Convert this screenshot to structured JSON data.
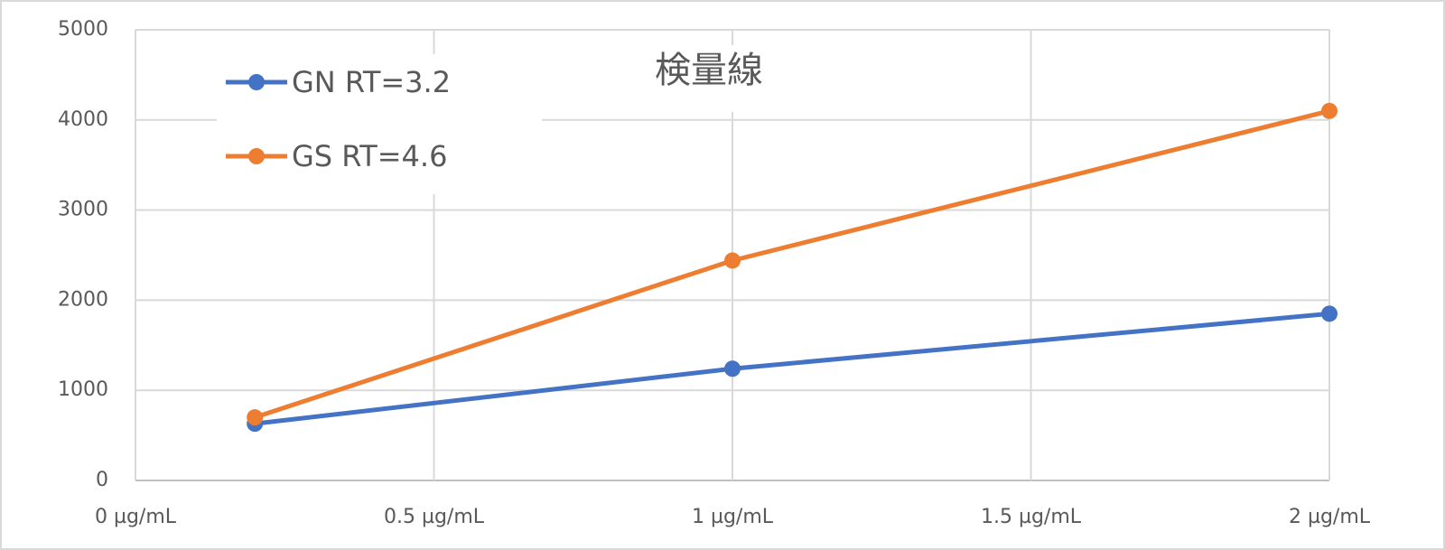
{
  "chart_data": {
    "type": "line",
    "title": "検量線",
    "x": [
      0.2,
      1,
      2
    ],
    "series": [
      {
        "name": "GN RT=3.2",
        "color": "#4472c4",
        "values": [
          630,
          1240,
          1850
        ]
      },
      {
        "name": "GS RT=4.6",
        "color": "#ed7d31",
        "values": [
          700,
          2440,
          4100
        ]
      }
    ],
    "xlim": [
      0,
      2
    ],
    "xticks": [
      {
        "value": 0,
        "label": "0 µg/mL"
      },
      {
        "value": 0.5,
        "label": "0.5 µg/mL"
      },
      {
        "value": 1,
        "label": "1 µg/mL"
      },
      {
        "value": 1.5,
        "label": "1.5 µg/mL"
      },
      {
        "value": 2,
        "label": "2 µg/mL"
      }
    ],
    "ylim": [
      0,
      5000
    ],
    "yticks": [
      0,
      1000,
      2000,
      3000,
      4000,
      5000
    ],
    "grid": true,
    "legend": "top-left"
  }
}
